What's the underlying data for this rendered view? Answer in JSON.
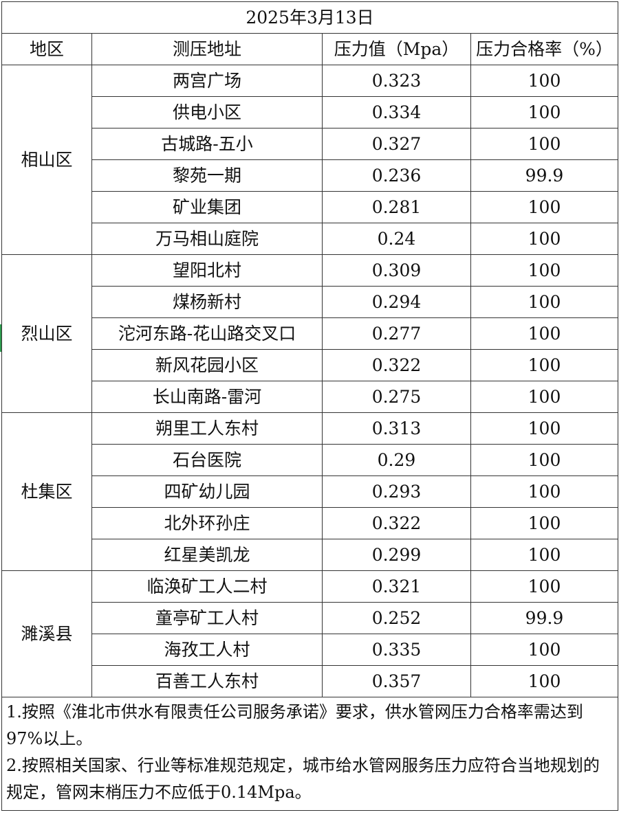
{
  "title": "2025年3月13日",
  "headers": [
    "地区",
    "测压地址",
    "压力值（Mpa）",
    "压力合格率（%）"
  ],
  "regions": [
    {
      "name": "相山区",
      "rows": [
        {
          "address": "两宫广场",
          "pressure": "0.323",
          "rate": "100"
        },
        {
          "address": "供电小区",
          "pressure": "0.334",
          "rate": "100"
        },
        {
          "address": "古城路-五小",
          "pressure": "0.327",
          "rate": "100"
        },
        {
          "address": "黎苑一期",
          "pressure": "0.236",
          "rate": "99.9"
        },
        {
          "address": "矿业集团",
          "pressure": "0.281",
          "rate": "100"
        },
        {
          "address": "万马相山庭院",
          "pressure": "0.24",
          "rate": "100"
        }
      ]
    },
    {
      "name": "烈山区",
      "rows": [
        {
          "address": "望阳北村",
          "pressure": "0.309",
          "rate": "100"
        },
        {
          "address": "煤杨新村",
          "pressure": "0.294",
          "rate": "100"
        },
        {
          "address": "沱河东路-花山路交叉口",
          "pressure": "0.277",
          "rate": "100"
        },
        {
          "address": "新风花园小区",
          "pressure": "0.322",
          "rate": "100"
        },
        {
          "address": "长山南路-雷河",
          "pressure": "0.275",
          "rate": "100"
        }
      ]
    },
    {
      "name": "杜集区",
      "rows": [
        {
          "address": "朔里工人东村",
          "pressure": "0.313",
          "rate": "100"
        },
        {
          "address": "石台医院",
          "pressure": "0.29",
          "rate": "100"
        },
        {
          "address": "四矿幼儿园",
          "pressure": "0.293",
          "rate": "100"
        },
        {
          "address": "北外环孙庄",
          "pressure": "0.322",
          "rate": "100"
        },
        {
          "address": "红星美凯龙",
          "pressure": "0.299",
          "rate": "100"
        }
      ]
    },
    {
      "name": "濉溪县",
      "rows": [
        {
          "address": "临涣矿工人二村",
          "pressure": "0.321",
          "rate": "100"
        },
        {
          "address": "童亭矿工人村",
          "pressure": "0.252",
          "rate": "99.9"
        },
        {
          "address": "海孜工人村",
          "pressure": "0.335",
          "rate": "100"
        },
        {
          "address": "百善工人东村",
          "pressure": "0.357",
          "rate": "100"
        }
      ]
    }
  ],
  "notes": [
    "1.按照《淮北市供水有限责任公司服务承诺》要求，供水管网压力合格率需达到97%以上。",
    "2.按照相关国家、行业等标准规范规定，城市给水管网服务压力应符合当地规划的规定，管网末梢压力不应低于0.14Mpa。"
  ]
}
